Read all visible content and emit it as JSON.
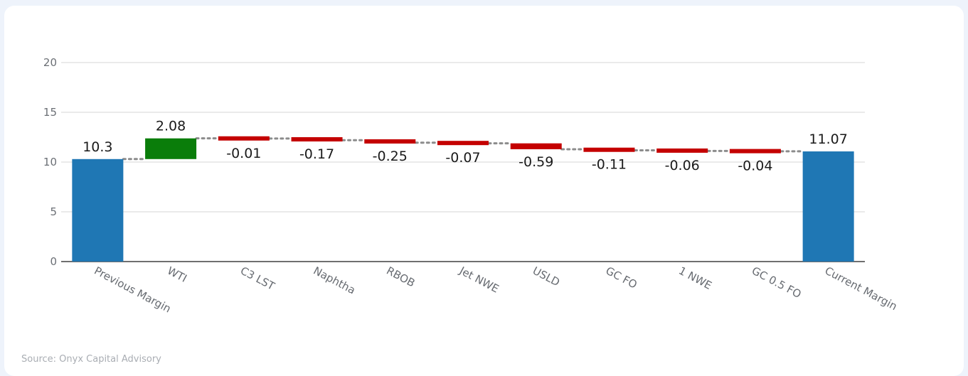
{
  "source_text": "Source: Onyx Capital Advisory",
  "chart_data": {
    "type": "waterfall",
    "categories": [
      "Previous Margin",
      "WTI",
      "C3 LST",
      "Naphtha",
      "RBOB",
      "Jet NWE",
      "USLD",
      "GC FO",
      "1 NWE",
      "GC 0.5 FO",
      "Current Margin"
    ],
    "values": [
      10.3,
      2.08,
      -0.01,
      -0.17,
      -0.25,
      -0.07,
      -0.59,
      -0.11,
      -0.06,
      -0.04,
      11.07
    ],
    "labels": [
      "10.3",
      "2.08",
      "-0.01",
      "-0.17",
      "-0.25",
      "-0.07",
      "-0.59",
      "-0.11",
      "-0.06",
      "-0.04",
      "11.07"
    ],
    "kinds": [
      "total",
      "delta",
      "delta",
      "delta",
      "delta",
      "delta",
      "delta",
      "delta",
      "delta",
      "delta",
      "total"
    ],
    "y_ticks": [
      0,
      5,
      10,
      15,
      20
    ],
    "ylim": [
      0,
      20
    ],
    "grid": true,
    "colors": {
      "total": "#1f77b4",
      "increase": "#0a7d0a",
      "decrease": "#c40000",
      "connector": "#8c8c8c",
      "grid": "#e3e3e3"
    }
  }
}
